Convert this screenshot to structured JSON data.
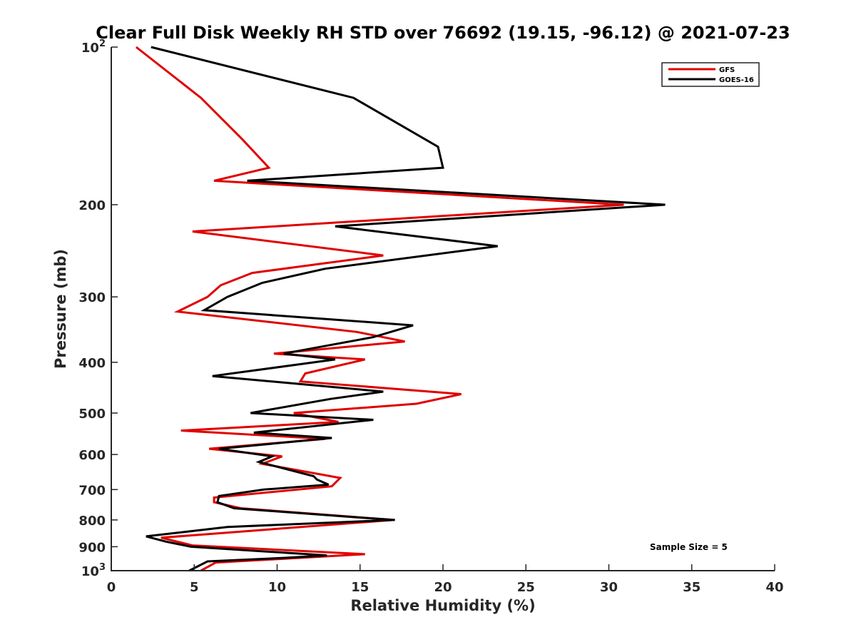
{
  "chart_data": {
    "type": "line",
    "title": "Clear Full Disk Weekly RH STD over 76692 (19.15, -96.12) @ 2021-07-23",
    "xlabel": "Relative Humidity (%)",
    "ylabel": "Pressure (mb)",
    "xlim": [
      0,
      40
    ],
    "ylim": [
      100,
      1000
    ],
    "yscale": "log",
    "yreverse": true,
    "x_ticks": [
      0,
      5,
      10,
      15,
      20,
      25,
      30,
      35,
      40
    ],
    "x_tick_labels": [
      "0",
      "5",
      "10",
      "15",
      "20",
      "25",
      "30",
      "35",
      "40"
    ],
    "y_ticks": [
      {
        "value": 100,
        "base": "10",
        "exp": "2"
      },
      {
        "value": 200,
        "label": "200"
      },
      {
        "value": 300,
        "label": "300"
      },
      {
        "value": 400,
        "label": "400"
      },
      {
        "value": 500,
        "label": "500"
      },
      {
        "value": 600,
        "label": "600"
      },
      {
        "value": 700,
        "label": "700"
      },
      {
        "value": 800,
        "label": "800"
      },
      {
        "value": 900,
        "label": "900"
      },
      {
        "value": 1000,
        "base": "10",
        "exp": "3"
      }
    ],
    "legend_position": "top-right",
    "annotation": "Sample Size = 5",
    "series": [
      {
        "name": "GFS",
        "color": "#e00000",
        "points": [
          [
            1.5,
            100
          ],
          [
            5.4,
            125
          ],
          [
            7.9,
            150
          ],
          [
            9.5,
            170
          ],
          [
            6.2,
            180
          ],
          [
            30.9,
            200
          ],
          [
            4.9,
            225
          ],
          [
            16.4,
            250
          ],
          [
            8.5,
            270
          ],
          [
            6.6,
            285
          ],
          [
            5.8,
            300
          ],
          [
            4.0,
            320
          ],
          [
            14.8,
            350
          ],
          [
            17.7,
            365
          ],
          [
            9.8,
            385
          ],
          [
            15.3,
            395
          ],
          [
            11.7,
            420
          ],
          [
            11.4,
            435
          ],
          [
            21.1,
            460
          ],
          [
            18.4,
            480
          ],
          [
            11.0,
            500
          ],
          [
            13.7,
            520
          ],
          [
            4.2,
            540
          ],
          [
            12.9,
            560
          ],
          [
            5.9,
            585
          ],
          [
            10.3,
            605
          ],
          [
            9.1,
            625
          ],
          [
            13.8,
            665
          ],
          [
            13.3,
            690
          ],
          [
            6.2,
            725
          ],
          [
            6.2,
            740
          ],
          [
            7.8,
            760
          ],
          [
            17.0,
            800
          ],
          [
            3.0,
            865
          ],
          [
            4.9,
            895
          ],
          [
            15.3,
            930
          ],
          [
            6.3,
            965
          ],
          [
            5.4,
            1000
          ]
        ]
      },
      {
        "name": "GOES-16",
        "color": "#000000",
        "points": [
          [
            2.4,
            100
          ],
          [
            14.6,
            125
          ],
          [
            19.7,
            155
          ],
          [
            20.0,
            170
          ],
          [
            8.2,
            180
          ],
          [
            33.4,
            200
          ],
          [
            13.5,
            220
          ],
          [
            23.3,
            240
          ],
          [
            12.9,
            265
          ],
          [
            9.1,
            282
          ],
          [
            7.0,
            300
          ],
          [
            5.6,
            318
          ],
          [
            18.2,
            340
          ],
          [
            15.8,
            358
          ],
          [
            10.4,
            385
          ],
          [
            13.5,
            395
          ],
          [
            6.1,
            425
          ],
          [
            16.4,
            455
          ],
          [
            13.2,
            470
          ],
          [
            8.4,
            500
          ],
          [
            15.8,
            515
          ],
          [
            8.6,
            545
          ],
          [
            13.3,
            558
          ],
          [
            6.5,
            585
          ],
          [
            9.7,
            605
          ],
          [
            8.9,
            620
          ],
          [
            12.2,
            660
          ],
          [
            12.4,
            670
          ],
          [
            13.1,
            685
          ],
          [
            9.2,
            700
          ],
          [
            6.5,
            720
          ],
          [
            6.4,
            740
          ],
          [
            7.4,
            760
          ],
          [
            14.6,
            790
          ],
          [
            17.1,
            800
          ],
          [
            7.0,
            825
          ],
          [
            2.1,
            860
          ],
          [
            3.3,
            880
          ],
          [
            4.8,
            900
          ],
          [
            13.0,
            935
          ],
          [
            10.5,
            945
          ],
          [
            5.8,
            960
          ],
          [
            4.7,
            1000
          ]
        ]
      }
    ]
  }
}
